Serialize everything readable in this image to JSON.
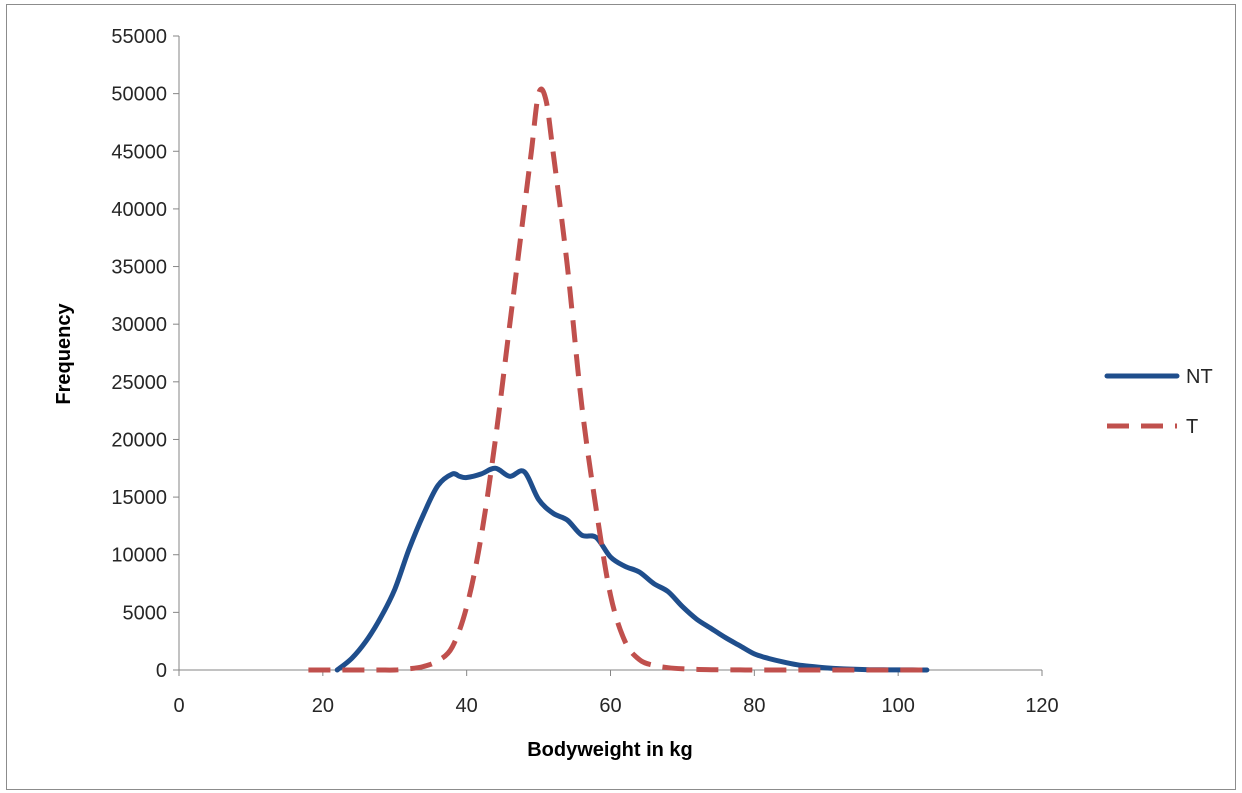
{
  "chart_data": {
    "type": "line",
    "title": "",
    "xlabel": "Bodyweight in kg",
    "ylabel": "Frequency",
    "xlim": [
      0,
      120
    ],
    "ylim": [
      0,
      55000
    ],
    "xticks": [
      0,
      20,
      40,
      60,
      80,
      100,
      120
    ],
    "yticks": [
      0,
      5000,
      10000,
      15000,
      20000,
      25000,
      30000,
      35000,
      40000,
      45000,
      50000,
      55000
    ],
    "grid": false,
    "legend_position": "right",
    "series": [
      {
        "name": "NT",
        "color": "#1f4e8c",
        "style": "solid",
        "x": [
          22,
          24,
          26,
          28,
          30,
          32,
          34,
          36,
          38,
          39,
          40,
          42,
          44,
          46,
          48,
          50,
          52,
          54,
          56,
          58,
          60,
          62,
          64,
          66,
          68,
          70,
          72,
          74,
          76,
          78,
          80,
          82,
          84,
          86,
          88,
          90,
          92,
          94,
          96,
          98,
          100,
          102,
          104
        ],
        "y": [
          0,
          1000,
          2500,
          4500,
          7000,
          10500,
          13500,
          16000,
          17000,
          16800,
          16700,
          17000,
          17500,
          16800,
          17200,
          14800,
          13600,
          13000,
          11700,
          11500,
          9800,
          9000,
          8500,
          7500,
          6800,
          5500,
          4400,
          3600,
          2800,
          2100,
          1400,
          1000,
          700,
          450,
          300,
          180,
          100,
          60,
          30,
          20,
          10,
          5,
          0
        ]
      },
      {
        "name": "T",
        "color": "#c0504d",
        "style": "dashed",
        "x": [
          18,
          20,
          22,
          24,
          26,
          28,
          30,
          32,
          34,
          36,
          38,
          40,
          42,
          44,
          46,
          48,
          49,
          50,
          51,
          52,
          54,
          56,
          58,
          60,
          62,
          64,
          66,
          68,
          70,
          72,
          74,
          76,
          78,
          80,
          84,
          88,
          92,
          96,
          100,
          104
        ],
        "y": [
          0,
          0,
          0,
          0,
          0,
          0,
          0,
          100,
          300,
          800,
          2000,
          5500,
          11500,
          20000,
          30000,
          40000,
          45000,
          50000,
          49500,
          45000,
          35000,
          23000,
          14000,
          6500,
          2500,
          900,
          400,
          200,
          100,
          50,
          30,
          10,
          5,
          0,
          0,
          0,
          0,
          0,
          0,
          0
        ]
      }
    ]
  }
}
